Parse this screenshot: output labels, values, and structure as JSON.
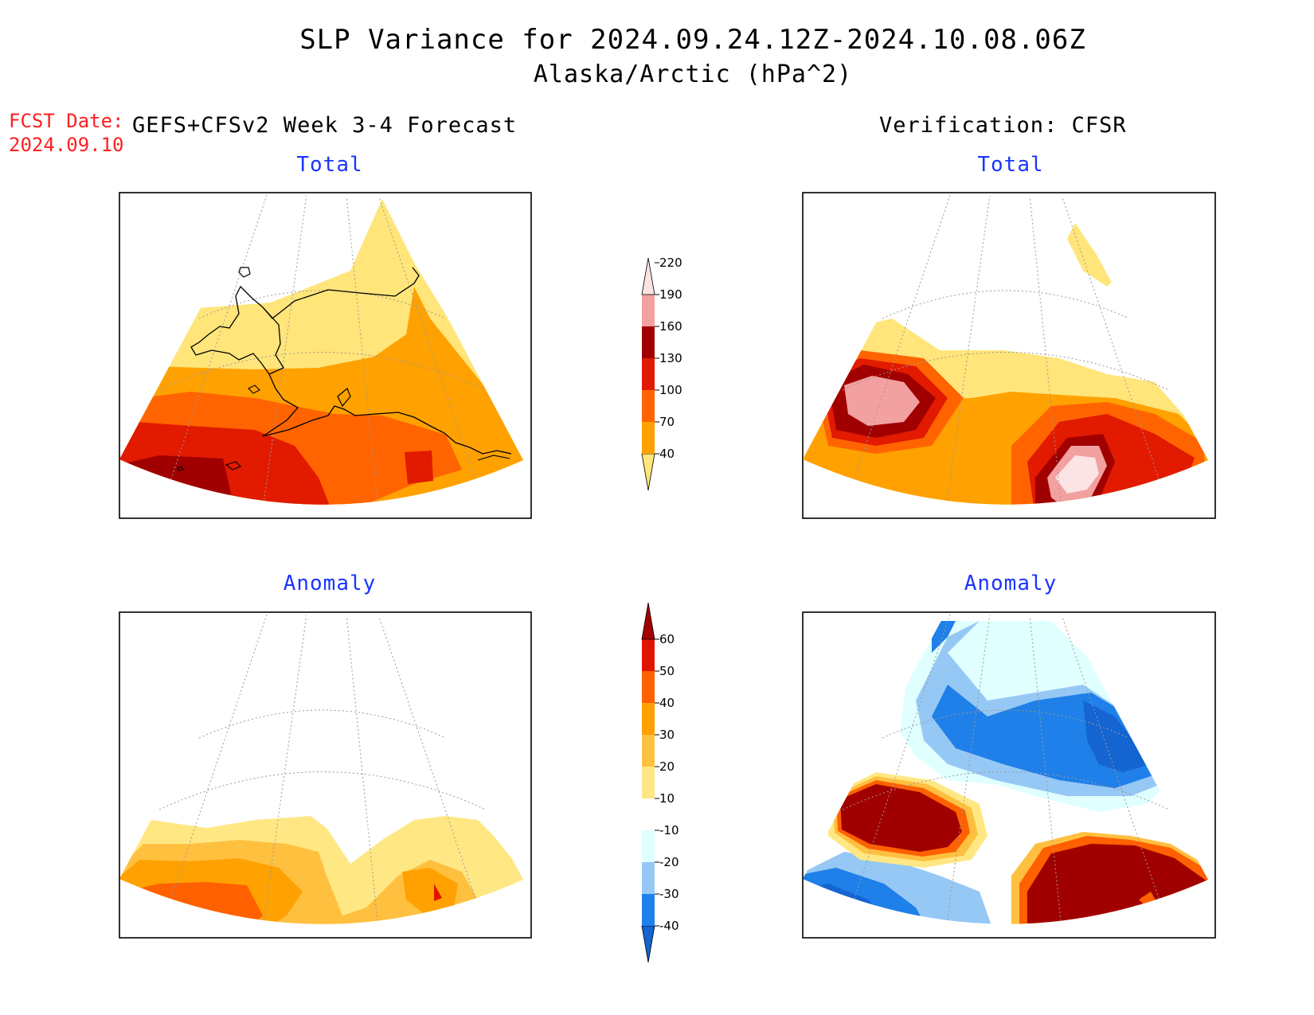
{
  "title": "SLP Variance for 2024.09.24.12Z-2024.10.08.06Z",
  "subtitle": "Alaska/Arctic (hPa^2)",
  "forecast_date": {
    "label": "FCST Date:",
    "value": "2024.09.10"
  },
  "left_header": "GEFS+CFSv2 Week 3-4 Forecast",
  "right_header": "Verification: CFSR",
  "panels": {
    "forecast_total": {
      "title": "Total"
    },
    "verification_total": {
      "title": "Total"
    },
    "forecast_anomaly": {
      "title": "Anomaly"
    },
    "verification_anomaly": {
      "title": "Anomaly"
    }
  },
  "colorbars": {
    "total": {
      "ticks": [
        "40",
        "70",
        "100",
        "130",
        "160",
        "190",
        "220"
      ],
      "colors": [
        "#ffe57a",
        "#ffa100",
        "#ff6400",
        "#e11a00",
        "#a00000",
        "#f2a0a0",
        "#fde4e4"
      ]
    },
    "anomaly": {
      "ticks": [
        "-40",
        "-30",
        "-20",
        "-10",
        "10",
        "20",
        "30",
        "40",
        "50",
        "60"
      ],
      "colors": [
        "#1464d2",
        "#1e80e8",
        "#96c8f5",
        "#e0ffff",
        "#ffffff",
        "#ffe884",
        "#ffc040",
        "#ffa000",
        "#ff6000",
        "#e11400",
        "#a50000"
      ]
    }
  },
  "colors": {
    "title_text": "#1a35ff",
    "forecast_date_text": "#ff2020"
  }
}
